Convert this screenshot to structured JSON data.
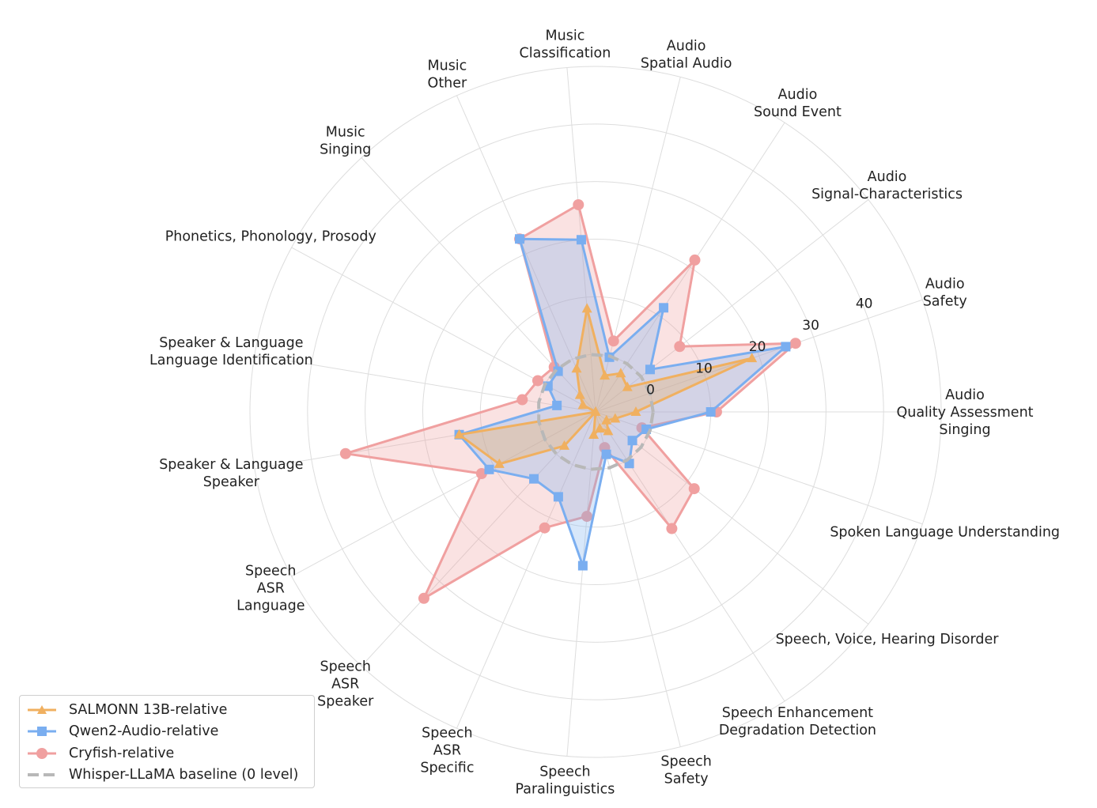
{
  "chart_data": {
    "type": "radar",
    "title": "",
    "categories": [
      "Audio\nQuality Assessment\nSinging",
      "Audio\nSafety",
      "Audio\nSignal-Characteristics",
      "Audio\nSound Event",
      "Audio\nSpatial Audio",
      "Music\nClassification",
      "Music\nOther",
      "Music\nSinging",
      "Phonetics, Phonology, Prosody",
      "Speaker & Language\nLanguage Identification",
      "Speaker & Language\nSpeaker",
      "Speech\nASR\nLanguage",
      "Speech\nASR\nSpeaker",
      "Speech\nASR\nSpecific",
      "Speech\nParalinguistics",
      "Speech\nSafety",
      "Speech Enhancement\nDegradation Detection",
      "Speech, Voice, Hearing Disorder",
      "Spoken Language Understanding"
    ],
    "radial_ticks": [
      0,
      10,
      20,
      30,
      40
    ],
    "r_min": -10,
    "r_max": 50,
    "grid": true,
    "legend_position": "bottom-left",
    "series": [
      {
        "name": "SALMONN 13B-relative",
        "color": "#f0b060",
        "marker": "triangle",
        "values": [
          -3,
          18.7,
          -3,
          -2,
          -3.5,
          8,
          -1.8,
          -6,
          -7.5,
          -10,
          14,
          9,
          -2,
          -10,
          -6,
          -7,
          -6,
          -7.6,
          -6.4
        ]
      },
      {
        "name": "Qwen2-Audio-relative",
        "color": "#7aaef0",
        "marker": "square",
        "values": [
          10,
          24.9,
          2,
          11.6,
          -0.2,
          20,
          22.8,
          -0.4,
          -0.6,
          -3.2,
          14,
          11,
          5.8,
          6.1,
          16.8,
          -2.4,
          0.7,
          -1.9,
          -0.7
        ]
      },
      {
        "name": "Cryfish-relative",
        "color": "#f0a0a0",
        "marker": "circle",
        "values": [
          11,
          26.7,
          8.5,
          21.5,
          2.7,
          26.1,
          22.8,
          0.6,
          1.4,
          2.9,
          34,
          12.5,
          34,
          12,
          8.2,
          -3.6,
          14.2,
          11.7,
          -1.5
        ]
      },
      {
        "name": "Whisper-LLaMA baseline (0 level)",
        "color": "#b8b8b8",
        "marker": "none",
        "values": [
          0,
          0,
          0,
          0,
          0,
          0,
          0,
          0,
          0,
          0,
          0,
          0,
          0,
          0,
          0,
          0,
          0,
          0,
          0
        ]
      }
    ]
  },
  "legend": {
    "items": [
      {
        "label": "SALMONN 13B-relative",
        "color": "#f0b060",
        "marker": "triangle"
      },
      {
        "label": "Qwen2-Audio-relative",
        "color": "#7aaef0",
        "marker": "square"
      },
      {
        "label": "Cryfish-relative",
        "color": "#f0a0a0",
        "marker": "circle"
      },
      {
        "label": "Whisper-LLaMA baseline (0 level)",
        "color": "#b8b8b8",
        "marker": "dashed-line"
      }
    ]
  }
}
